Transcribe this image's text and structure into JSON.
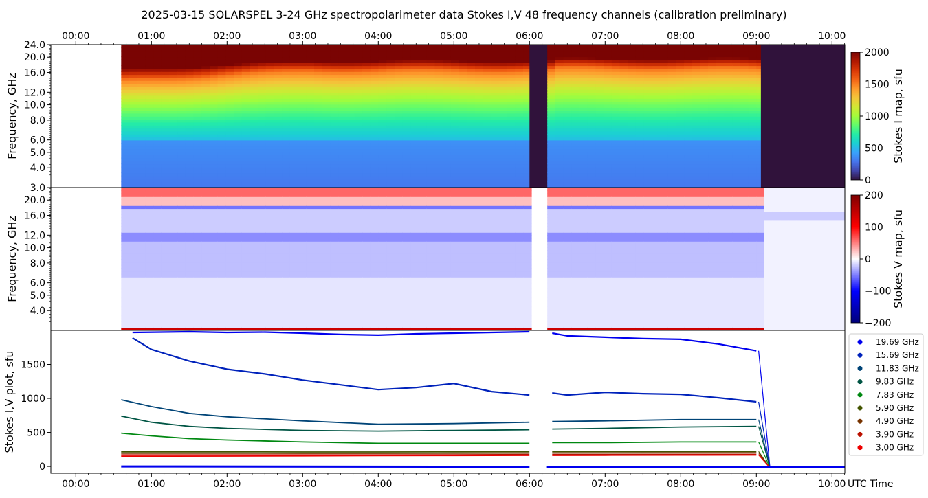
{
  "title": "2025-03-15  SOLARSPEL  3-24 GHz spectropolarimeter data   Stokes I,V   48 frequency channels   (calibration preliminary)",
  "colors": {
    "stokes_i_colormap": [
      "#30123b",
      "#4145ab",
      "#4675ed",
      "#39a2fc",
      "#1bcfd4",
      "#24eca6",
      "#61fc6c",
      "#a4fc3b",
      "#d1e834",
      "#f3c63a",
      "#fe9b2d",
      "#f36315",
      "#d93806",
      "#b11901",
      "#7a0403"
    ],
    "stokes_v_colormap": [
      "#00007a",
      "#0000ff",
      "#ffffff",
      "#ff0000",
      "#7f0000"
    ],
    "series_colors": [
      "#0000ee",
      "#0022bb",
      "#004477",
      "#005544",
      "#008811",
      "#445500",
      "#773300",
      "#bb1100",
      "#ee0000"
    ]
  },
  "time_axis": {
    "tick_labels": [
      "00:00",
      "01:00",
      "02:00",
      "03:00",
      "04:00",
      "05:00",
      "06:00",
      "07:00",
      "08:00",
      "09:00",
      "10:00"
    ],
    "tick_hours": [
      0,
      1,
      2,
      3,
      4,
      5,
      6,
      7,
      8,
      9,
      10
    ],
    "xlim_hours": [
      -0.33,
      10.17
    ],
    "bottom_label": "UTC Time"
  },
  "freq_axis": {
    "scale": "log",
    "ylim": [
      3.0,
      24.0
    ],
    "ticks_top": [
      {
        "v": 3.0,
        "label": "3.0"
      },
      {
        "v": 4.0,
        "label": "4.0"
      },
      {
        "v": 5.0,
        "label": "5.0"
      },
      {
        "v": 6.0,
        "label": "6.0"
      },
      {
        "v": 8.0,
        "label": "8.0"
      },
      {
        "v": 10.0,
        "label": "10.0"
      },
      {
        "v": 12.0,
        "label": "12.0"
      },
      {
        "v": 16.0,
        "label": "16.0"
      },
      {
        "v": 20.0,
        "label": "20.0"
      },
      {
        "v": 24.0,
        "label": "24.0"
      }
    ],
    "ticks_mid": [
      {
        "v": 4.0,
        "label": "4.0"
      },
      {
        "v": 5.0,
        "label": "5.0"
      },
      {
        "v": 6.0,
        "label": "6.0"
      },
      {
        "v": 8.0,
        "label": "8.0"
      },
      {
        "v": 10.0,
        "label": "10.0"
      },
      {
        "v": 12.0,
        "label": "12.0"
      },
      {
        "v": 16.0,
        "label": "16.0"
      },
      {
        "v": 20.0,
        "label": "20.0"
      }
    ],
    "ylabel": "Frequency, GHz"
  },
  "colorbar_i": {
    "label": "Stokes I map, sfu",
    "range": [
      0,
      2000
    ],
    "ticks": [
      0,
      500,
      1000,
      1500,
      2000
    ],
    "tick_labels": [
      "0",
      "500",
      "1000",
      "1500",
      "2000"
    ]
  },
  "colorbar_v": {
    "label": "Stokes V map, sfu",
    "range": [
      -200,
      200
    ],
    "ticks": [
      -200,
      -100,
      0,
      100,
      200
    ],
    "tick_labels": [
      "−200",
      "−100",
      "0",
      "100",
      "200"
    ]
  },
  "plot_axis": {
    "ylabel": "Stokes I,V plot, sfu",
    "ylim": [
      -100,
      2000
    ],
    "ticks": [
      0,
      500,
      1000,
      1500
    ],
    "tick_labels": [
      "0",
      "500",
      "1000",
      "1500"
    ]
  },
  "chart_data": {
    "type": "line",
    "x_unit": "hours UTC",
    "observation": {
      "start": 0.6,
      "gap": [
        6.0,
        6.23
      ],
      "end_drop": 9.03,
      "end": 10.17
    },
    "legend_position": "right",
    "series": [
      {
        "name": "19.69 GHz",
        "x": [
          0.75,
          1.5,
          2.0,
          2.5,
          3.0,
          3.5,
          4.0,
          4.5,
          5.0,
          5.5,
          6.0,
          6.3,
          6.5,
          7.0,
          7.5,
          8.0,
          8.5,
          9.0
        ],
        "values": [
          1970,
          1980,
          1970,
          1975,
          1960,
          1940,
          1930,
          1950,
          1960,
          1970,
          1980,
          1960,
          1920,
          1900,
          1880,
          1870,
          1800,
          1700
        ]
      },
      {
        "name": "15.69 GHz",
        "x": [
          0.75,
          1.0,
          1.5,
          2.0,
          2.5,
          3.0,
          3.5,
          4.0,
          4.5,
          5.0,
          5.5,
          6.0,
          6.3,
          6.5,
          7.0,
          7.5,
          8.0,
          8.5,
          9.0
        ],
        "values": [
          1890,
          1720,
          1550,
          1430,
          1360,
          1270,
          1200,
          1130,
          1160,
          1220,
          1100,
          1050,
          1080,
          1050,
          1090,
          1070,
          1060,
          1010,
          950
        ]
      },
      {
        "name": "11.83 GHz",
        "x": [
          0.6,
          1.0,
          1.5,
          2.0,
          3.0,
          4.0,
          5.0,
          6.0,
          6.3,
          7.0,
          8.0,
          9.0
        ],
        "values": [
          980,
          880,
          780,
          730,
          670,
          620,
          630,
          650,
          660,
          670,
          690,
          690
        ]
      },
      {
        "name": "9.83 GHz",
        "x": [
          0.6,
          1.0,
          1.5,
          2.0,
          3.0,
          4.0,
          5.0,
          6.0,
          6.3,
          7.0,
          8.0,
          9.0
        ],
        "values": [
          740,
          650,
          590,
          560,
          530,
          520,
          530,
          540,
          550,
          560,
          580,
          590
        ]
      },
      {
        "name": "7.83 GHz",
        "x": [
          0.6,
          1.0,
          1.5,
          2.0,
          3.0,
          4.0,
          5.0,
          6.0,
          6.3,
          7.0,
          8.0,
          9.0
        ],
        "values": [
          490,
          450,
          410,
          390,
          360,
          340,
          340,
          340,
          350,
          350,
          360,
          360
        ]
      },
      {
        "name": "5.90 GHz",
        "x": [
          0.6,
          1.0,
          2.0,
          3.0,
          4.0,
          5.0,
          6.0,
          6.3,
          7.0,
          8.0,
          9.0
        ],
        "values": [
          215,
          215,
          215,
          213,
          213,
          215,
          217,
          218,
          218,
          220,
          220
        ]
      },
      {
        "name": "4.90 GHz",
        "x": [
          0.6,
          1.0,
          2.0,
          3.0,
          4.0,
          5.0,
          6.0,
          6.3,
          7.0,
          8.0,
          9.0
        ],
        "values": [
          195,
          195,
          195,
          193,
          193,
          195,
          197,
          198,
          198,
          200,
          200
        ]
      },
      {
        "name": "3.90 GHz",
        "x": [
          0.6,
          1.0,
          2.0,
          3.0,
          4.0,
          5.0,
          6.0,
          6.3,
          7.0,
          8.0,
          9.0
        ],
        "values": [
          170,
          170,
          170,
          170,
          170,
          172,
          175,
          175,
          175,
          177,
          177
        ]
      },
      {
        "name": "3.00 GHz",
        "x": [
          0.6,
          1.0,
          2.0,
          3.0,
          4.0,
          5.0,
          6.0,
          6.3,
          7.0,
          8.0,
          9.0
        ],
        "values": [
          150,
          150,
          152,
          155,
          158,
          160,
          162,
          163,
          165,
          167,
          168
        ]
      }
    ]
  }
}
